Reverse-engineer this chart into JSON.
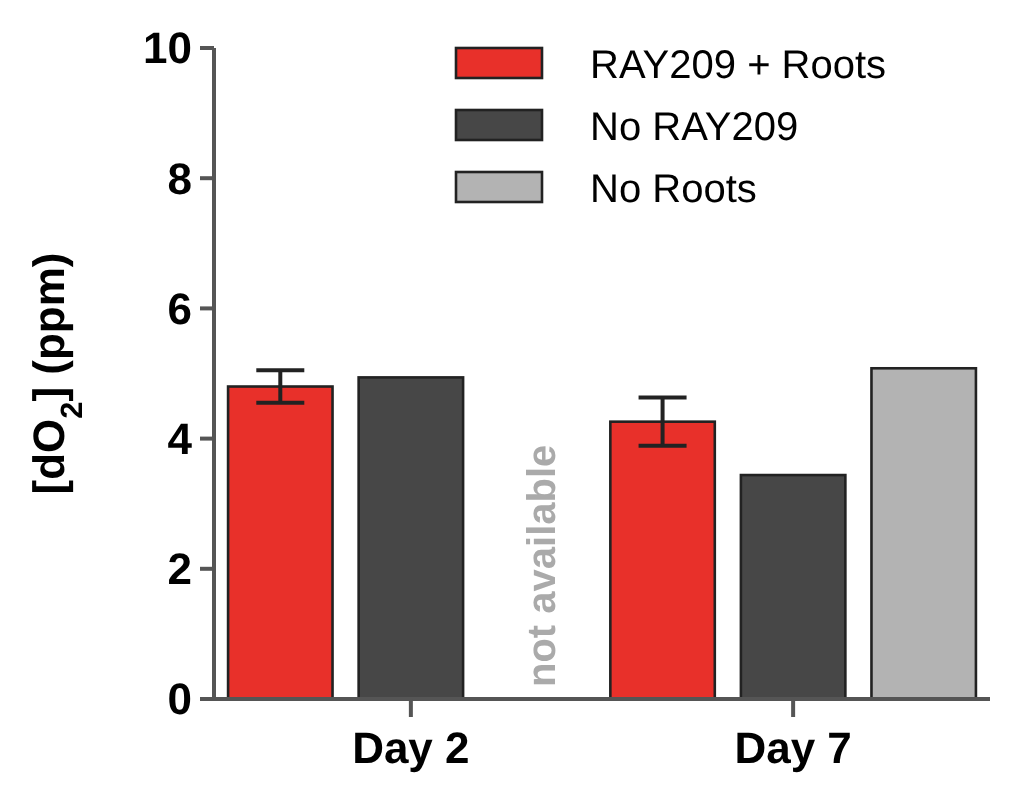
{
  "chart_data": {
    "type": "bar",
    "ylabel": "[dO$_{2}$] (ppm)",
    "categories": [
      "Day 2",
      "Day 7"
    ],
    "series": [
      {
        "name": "RAY209 + Roots",
        "color": "#e8302a",
        "values": [
          4.8,
          4.26
        ],
        "errors": [
          0.25,
          0.37
        ]
      },
      {
        "name": "No RAY209",
        "color": "#474747",
        "values": [
          4.94,
          3.44
        ]
      },
      {
        "name": "No Roots",
        "color": "#b3b3b3",
        "values": [
          null,
          5.08
        ]
      }
    ],
    "ylim": [
      0,
      10
    ],
    "yticks": [
      0,
      2,
      4,
      6,
      8,
      10
    ],
    "legend": "top right",
    "annotations": [
      "not available"
    ]
  }
}
